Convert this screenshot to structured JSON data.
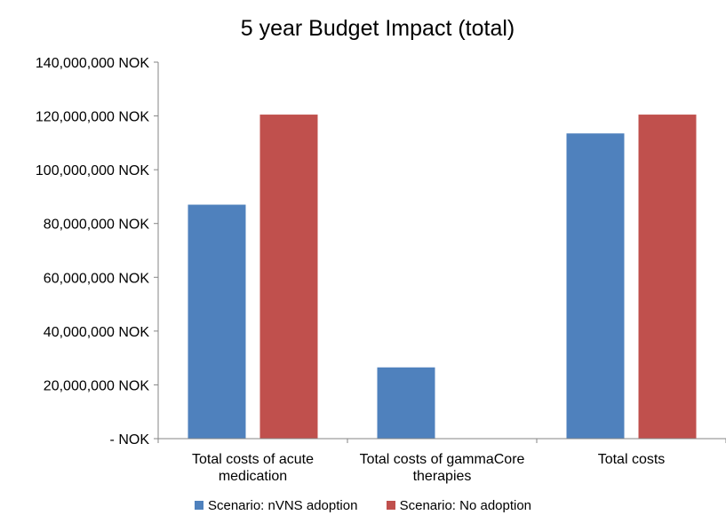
{
  "chart_data": {
    "type": "bar",
    "title": "5 year Budget Impact (total)",
    "categories": [
      [
        "Total costs of acute",
        "medication"
      ],
      [
        "Total costs of gammaCore",
        "therapies"
      ],
      [
        "Total costs"
      ]
    ],
    "series": [
      {
        "name": "Scenario: nVNS adoption",
        "color": "#4F81BD",
        "values": [
          87000000,
          26500000,
          113500000
        ]
      },
      {
        "name": "Scenario: No adoption",
        "color": "#C0504D",
        "values": [
          120500000,
          0,
          120500000
        ]
      }
    ],
    "yticks": [
      {
        "value": 0,
        "label": "-   NOK"
      },
      {
        "value": 20000000,
        "label": "20,000,000 NOK"
      },
      {
        "value": 40000000,
        "label": "40,000,000 NOK"
      },
      {
        "value": 60000000,
        "label": "60,000,000 NOK"
      },
      {
        "value": 80000000,
        "label": "80,000,000 NOK"
      },
      {
        "value": 100000000,
        "label": "100,000,000 NOK"
      },
      {
        "value": 120000000,
        "label": "120,000,000 NOK"
      },
      {
        "value": 140000000,
        "label": "140,000,000 NOK"
      }
    ],
    "ylim": [
      0,
      140000000
    ],
    "xlabel": "",
    "ylabel": "",
    "grid": false,
    "legend": "bottom"
  }
}
